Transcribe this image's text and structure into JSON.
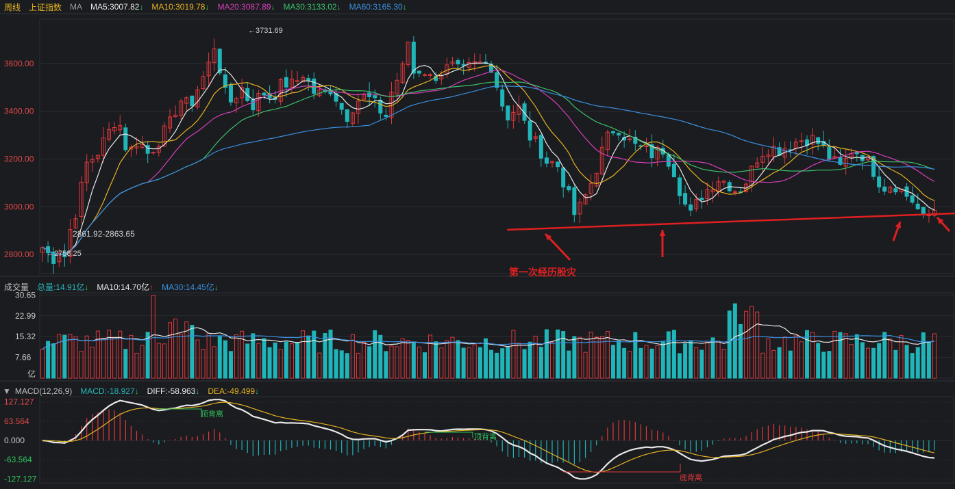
{
  "header": {
    "period": "周线",
    "index_name": "上证指数",
    "indicator": "MA",
    "ma": [
      {
        "text": "MA5:3007.82",
        "arrow": "↓",
        "color": "#e8e8e8"
      },
      {
        "text": "MA10:3019.78",
        "arrow": "↓",
        "color": "#e6b422"
      },
      {
        "text": "MA20:3087.89",
        "arrow": "↓",
        "color": "#d63fb8"
      },
      {
        "text": "MA30:3133.02",
        "arrow": "↓",
        "color": "#3cc06a"
      },
      {
        "text": "MA60:3165.30",
        "arrow": "↓",
        "color": "#3a8fe0"
      }
    ]
  },
  "volume_header": {
    "title": "成交量",
    "items": [
      {
        "text": "总量:14.91亿",
        "arrow": "↓",
        "color": "#29b6b6"
      },
      {
        "text": "MA10:14.70亿",
        "arrow": "↑",
        "color": "#e8e8e8"
      },
      {
        "text": "MA30:14.45亿",
        "arrow": "↓",
        "color": "#3a8fe0"
      }
    ]
  },
  "macd_header": {
    "toggle": "▼",
    "title": "MACD(12,26,9)",
    "items": [
      {
        "text": "MACD:-18.927",
        "arrow": "↓",
        "color": "#29b6b6"
      },
      {
        "text": "DIFF:-58.963",
        "arrow": "↓",
        "color": "#e8e8e8"
      },
      {
        "text": "DEA:-49.499",
        "arrow": "↓",
        "color": "#e6b422"
      }
    ]
  },
  "colors": {
    "up": "#e0383b",
    "down": "#20b5b8",
    "ma5": "#e8e8e8",
    "ma10": "#e6b422",
    "ma20": "#d63fb8",
    "ma30": "#3cc06a",
    "ma60": "#3a8fe0",
    "annotation": "#e02020",
    "axis_text_price": "#e04848",
    "axis_text_neg": "#2fc25b"
  },
  "chart_data": [
    {
      "type": "candlestick",
      "title": "上证指数 周线",
      "ylim": [
        2720,
        3780
      ],
      "yticks": [
        "3600.00",
        "3400.00",
        "3200.00",
        "3000.00",
        "2800.00"
      ],
      "ytick_values": [
        3600,
        3400,
        3200,
        3000,
        2800
      ],
      "num_bars": 162,
      "key_points": [
        [
          0,
          2830
        ],
        [
          4,
          2780
        ],
        [
          7,
          2830
        ],
        [
          10,
          2880
        ],
        [
          13,
          2980
        ],
        [
          17,
          3180
        ],
        [
          21,
          3220
        ],
        [
          25,
          3300
        ],
        [
          29,
          3380
        ],
        [
          33,
          3220
        ],
        [
          37,
          3280
        ],
        [
          41,
          3220
        ],
        [
          45,
          3280
        ],
        [
          49,
          3340
        ],
        [
          53,
          3450
        ],
        [
          57,
          3420
        ],
        [
          61,
          3520
        ],
        [
          64,
          3580
        ],
        [
          66,
          3690
        ],
        [
          68,
          3620
        ],
        [
          70,
          3480
        ],
        [
          73,
          3440
        ],
        [
          77,
          3500
        ],
        [
          81,
          3420
        ],
        [
          85,
          3480
        ],
        [
          89,
          3460
        ],
        [
          93,
          3520
        ],
        [
          97,
          3510
        ],
        [
          101,
          3560
        ],
        [
          105,
          3480
        ],
        [
          109,
          3470
        ],
        [
          112,
          3500
        ],
        [
          115,
          3420
        ],
        [
          118,
          3380
        ],
        [
          121,
          3440
        ],
        [
          124,
          3460
        ],
        [
          127,
          3450
        ],
        [
          130,
          3410
        ],
        [
          133,
          3380
        ],
        [
          135,
          3480
        ],
        [
          139,
          3580
        ],
        [
          143,
          3560
        ],
        [
          147,
          3580
        ],
        [
          150,
          3540
        ],
        [
          154,
          3560
        ],
        [
          158,
          3590
        ],
        [
          162,
          3560
        ],
        [
          166,
          3590
        ],
        [
          170,
          3600
        ],
        [
          174,
          3590
        ],
        [
          177,
          3450
        ],
        [
          180,
          3380
        ],
        [
          184,
          3420
        ],
        [
          188,
          3300
        ],
        [
          192,
          3250
        ],
        [
          195,
          3190
        ],
        [
          199,
          3180
        ],
        [
          203,
          3060
        ],
        [
          206,
          2960
        ],
        [
          209,
          3020
        ],
        [
          213,
          3120
        ],
        [
          216,
          3220
        ],
        [
          219,
          3300
        ],
        [
          222,
          3340
        ],
        [
          225,
          3300
        ],
        [
          228,
          3260
        ],
        [
          232,
          3240
        ],
        [
          236,
          3220
        ],
        [
          240,
          3240
        ],
        [
          244,
          3160
        ],
        [
          248,
          3020
        ],
        [
          251,
          2960
        ],
        [
          254,
          3040
        ],
        [
          258,
          3080
        ],
        [
          261,
          3120
        ],
        [
          265,
          3100
        ],
        [
          269,
          3060
        ],
        [
          273,
          3120
        ],
        [
          277,
          3220
        ],
        [
          281,
          3250
        ],
        [
          285,
          3240
        ],
        [
          289,
          3260
        ],
        [
          293,
          3280
        ],
        [
          297,
          3290
        ],
        [
          301,
          3260
        ],
        [
          305,
          3200
        ],
        [
          309,
          3160
        ],
        [
          313,
          3240
        ],
        [
          317,
          3220
        ],
        [
          321,
          3160
        ],
        [
          325,
          3080
        ],
        [
          329,
          3100
        ],
        [
          333,
          3060
        ],
        [
          337,
          3020
        ],
        [
          341,
          2940
        ],
        [
          345,
          2990
        ]
      ],
      "annotations": [
        {
          "label": "←3731.69",
          "value": 3731.69
        },
        {
          "label": "2861.92-2863.65",
          "value": 2862.5
        },
        {
          "label": "←2758.25",
          "value": 2758.25
        },
        {
          "label": "第一次经历股灾"
        }
      ],
      "legend": [
        "MA5",
        "MA10",
        "MA20",
        "MA30",
        "MA60"
      ]
    },
    {
      "type": "bar",
      "title": "成交量",
      "ylabel": "亿",
      "ylim": [
        0,
        31
      ],
      "yticks": [
        "30.65",
        "22.99",
        "15.32",
        "7.66"
      ],
      "ytick_values": [
        30.65,
        22.99,
        15.32,
        7.66
      ]
    },
    {
      "type": "bar",
      "title": "MACD(12,26,9)",
      "ylim": [
        -140,
        140
      ],
      "yticks": [
        "127.127",
        "63.564",
        "0.000",
        "-63.564",
        "-127.127"
      ],
      "ytick_values": [
        127.127,
        63.564,
        0,
        -63.564,
        -127.127
      ],
      "annotations": [
        "顶背离",
        "顶背离",
        "底背离"
      ]
    }
  ]
}
